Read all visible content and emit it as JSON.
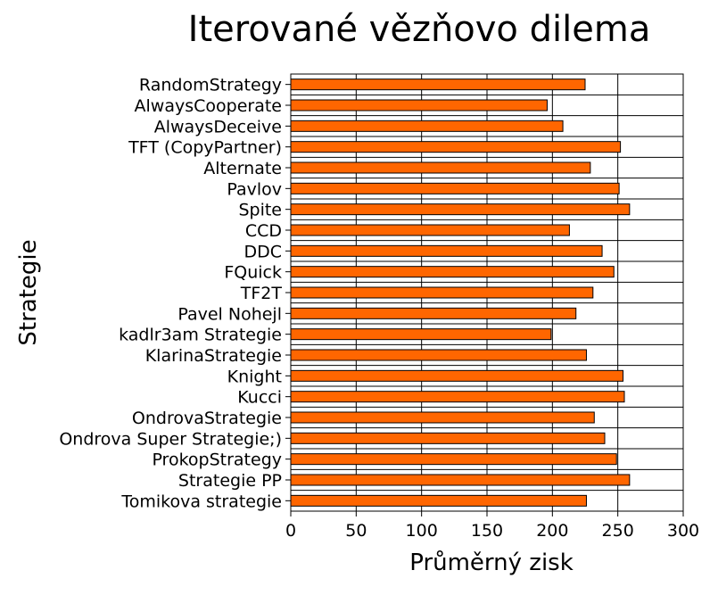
{
  "chart_data": {
    "type": "bar",
    "orientation": "horizontal",
    "title": "Iterované vězňovo dilema",
    "xlabel": "Průměrný zisk",
    "ylabel": "Strategie",
    "xlim": [
      0,
      300
    ],
    "xticks": [
      "0",
      "50",
      "100",
      "150",
      "200",
      "250",
      "300"
    ],
    "grid": "vertical",
    "legend": "none",
    "bar_color": "#ff6600",
    "categories": [
      "RandomStrategy",
      "AlwaysCooperate",
      "AlwaysDeceive",
      "TFT (CopyPartner)",
      "Alternate",
      "Pavlov",
      "Spite",
      "CCD",
      "DDC",
      "FQuick",
      "TF2T",
      "Pavel Nohejl",
      "kadlr3am Strategie",
      "KlarinaStrategie",
      "Knight",
      "Kucci",
      "OndrovaStrategie",
      "Ondrova Super Strategie;)",
      "ProkopStrategy",
      "Strategie PP",
      "Tomikova strategie"
    ],
    "values": [
      225,
      196,
      208,
      252,
      229,
      251,
      259,
      213,
      238,
      247,
      231,
      218,
      199,
      226,
      254,
      255,
      232,
      240,
      249,
      259,
      226
    ]
  }
}
